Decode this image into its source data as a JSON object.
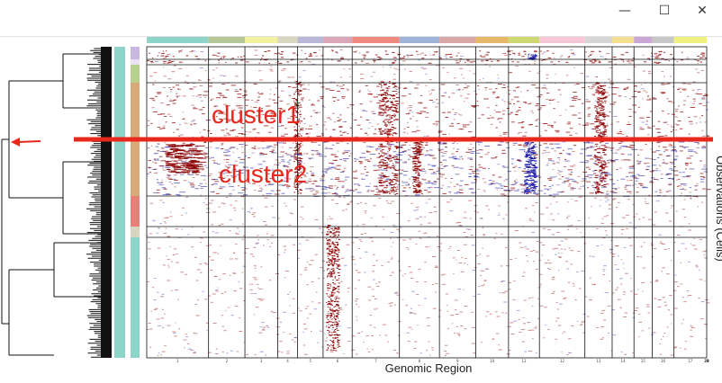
{
  "window": {
    "minimize_glyph": "—",
    "maximize_glyph": "☐",
    "close_glyph": "✕"
  },
  "chart_data": {
    "type": "heatmap",
    "title": "",
    "xlabel": "Genomic Region",
    "ylabel": "Observations (Cells)",
    "x_ticks": [
      "1",
      "2",
      "3",
      "4",
      "5",
      "6",
      "7",
      "8",
      "9",
      "10",
      "11",
      "12",
      "13",
      "14",
      "15",
      "16",
      "17",
      "18",
      "19",
      "20",
      "21",
      "22"
    ],
    "chromosome_colors": [
      "#8fd4c8",
      "#b7c99a",
      "#f2f2a0",
      "#d7d7c0",
      "#b8b7d8",
      "#d9a7b7",
      "#f08a80",
      "#9fb2d8",
      "#d8a8a8",
      "#e8b86a",
      "#cdd873",
      "#f6c8d8",
      "#d6d6d6",
      "#f4e090",
      "#c9a8d6",
      "#c7c7c7",
      "#eef080"
    ],
    "group_colors": [
      "#c9b9e0",
      "#b9d18e",
      "#d8aa7a",
      "#d8aa7a",
      "#e8807a",
      "#d8d4c2",
      "#8fd4c8"
    ],
    "cell_type_color": "#8fd4c8",
    "colors": {
      "gain": "#8b0000",
      "loss": "#1a1aa6",
      "annotation": "#e8271d"
    }
  },
  "annotations": {
    "cluster1": "cluster1",
    "cluster2": "cluster2"
  }
}
